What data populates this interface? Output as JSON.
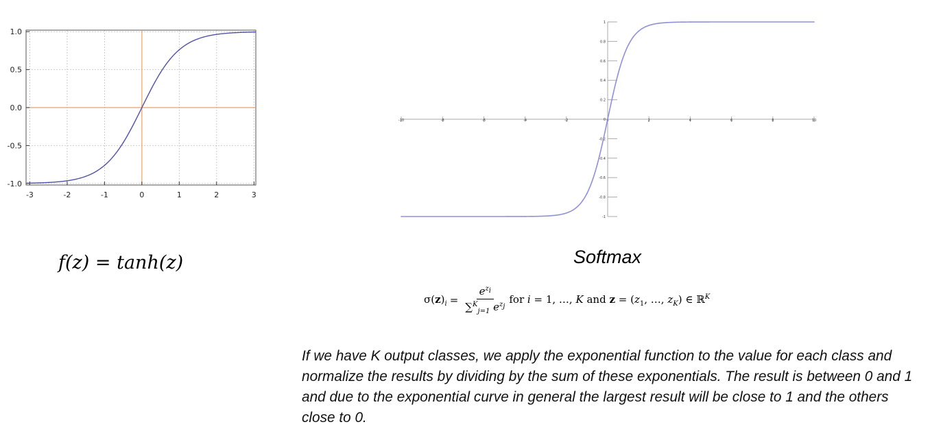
{
  "chart_data": [
    {
      "type": "line",
      "function": "tanh",
      "x": [
        -3,
        -2.5,
        -2,
        -1.5,
        -1,
        -0.5,
        0,
        0.5,
        1,
        1.5,
        2,
        2.5,
        3
      ],
      "series": [
        {
          "values": [
            -0.995,
            -0.987,
            -0.964,
            -0.905,
            -0.762,
            -0.462,
            0,
            0.462,
            0.762,
            0.905,
            0.964,
            0.987,
            0.995
          ]
        }
      ],
      "xlim": [
        -3.1,
        3.05
      ],
      "ylim": [
        -1.02,
        1.02
      ],
      "x_ticks": [
        "-3",
        "-2",
        "-1",
        "0",
        "1",
        "2",
        "3"
      ],
      "y_ticks": [
        "1.0",
        "0.5",
        "0.0",
        "-0.5",
        "-1.0"
      ],
      "grid": true,
      "line_color": "#5050a8",
      "axis_color": "#e8a168"
    },
    {
      "type": "line",
      "function": "sigmoid-shaped curve from -1 to 1",
      "x": [
        -10,
        -4,
        -3,
        -2,
        -1.5,
        -1,
        -0.5,
        0,
        0.5,
        1,
        1.5,
        2,
        3,
        4,
        10
      ],
      "series": [
        {
          "values": [
            -1,
            -0.9993,
            -0.995,
            -0.964,
            -0.905,
            -0.762,
            -0.462,
            0,
            0.462,
            0.762,
            0.905,
            0.964,
            0.995,
            0.9993,
            1
          ]
        }
      ],
      "xlim": [
        -10,
        10
      ],
      "ylim": [
        -1,
        1
      ],
      "x_ticks": [
        "-10",
        "-8",
        "-6",
        "-4",
        "-2",
        "0",
        "2",
        "4",
        "6",
        "8",
        "10"
      ],
      "y_ticks": [
        "1",
        "0.8",
        "0.6",
        "0.4",
        "0.2",
        "0",
        "-0.2",
        "-0.4",
        "-0.6",
        "-0.8",
        "-1"
      ],
      "grid": false,
      "line_color": "#9090d8"
    }
  ],
  "tanh_formula": {
    "lhs": "f(z)",
    "equals": "=",
    "rhs": "tanh(z)"
  },
  "softmax": {
    "title": "Softmax",
    "formula": {
      "sigma": "σ(",
      "z": "z",
      "close_sub": ")",
      "i": "i",
      "eq": "=",
      "num_base": "e",
      "num_exp": "z",
      "num_exp_sub": "i",
      "den_sum": "∑",
      "den_upper": "K",
      "den_lower": "j=1",
      "den_base": "e",
      "den_exp": "z",
      "den_exp_sub": "j",
      "tail_for": "for",
      "tail_i": "i",
      "tail_range": "= 1, …, ",
      "tail_K": "K",
      "tail_and": "and",
      "tail_z": "z",
      "tail_eq": "= (",
      "tail_z1": "z",
      "tail_z1_sub": "1",
      "tail_dots": ", …, ",
      "tail_zK": "z",
      "tail_zK_sub": "K",
      "tail_in": ") ∈ ℝ",
      "tail_sup": "K"
    },
    "description": "If we have K output classes, we apply the exponential function to the value for each class and normalize the results by dividing by the sum of these exponentials. The result is between 0 and 1 and due to the exponential curve in general the largest result will be close to 1 and the others close to 0."
  }
}
